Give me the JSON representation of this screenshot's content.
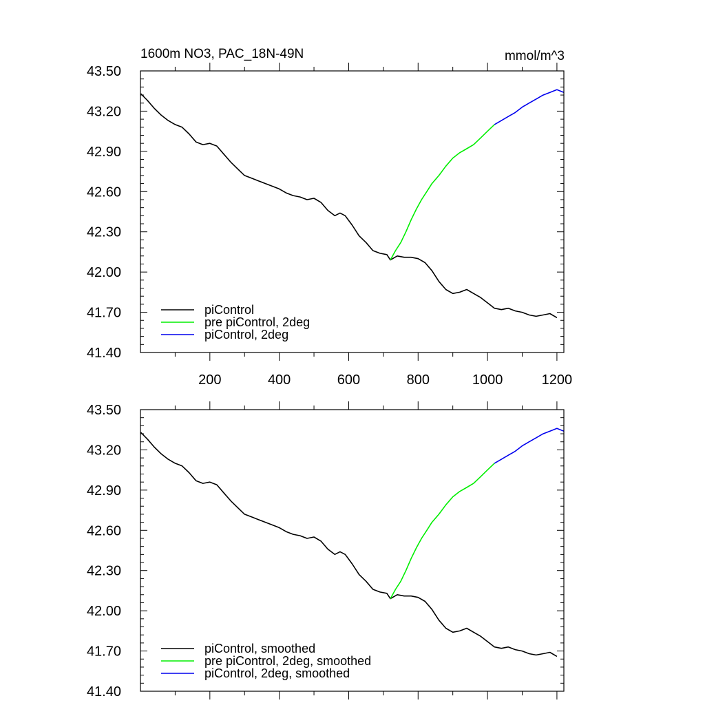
{
  "chart_data": [
    {
      "type": "line",
      "title": "1600m NO3, PAC_18N-49N",
      "units": "mmol/m^3",
      "xlim": [
        0,
        1220
      ],
      "ylim": [
        41.4,
        43.5
      ],
      "x_tick_values": [
        200,
        400,
        600,
        800,
        1000,
        1200
      ],
      "x_tick_labels": [
        "200",
        "400",
        "600",
        "800",
        "1000",
        "1200"
      ],
      "x_minor_tick_values": [
        100,
        300,
        500,
        700,
        900,
        1100
      ],
      "y_tick_values": [
        41.4,
        41.7,
        42.0,
        42.3,
        42.6,
        42.9,
        43.2,
        43.5
      ],
      "y_tick_labels": [
        "41.40",
        "41.70",
        "42.00",
        "42.30",
        "42.60",
        "42.90",
        "43.20",
        "43.50"
      ],
      "legend": {
        "position": "bottom-left",
        "entries": [
          "piControl",
          "pre piControl, 2deg",
          "piControl, 2deg"
        ]
      },
      "series": [
        {
          "name": "piControl",
          "color": "#000000",
          "x": [
            1,
            20,
            40,
            60,
            80,
            100,
            120,
            140,
            160,
            180,
            200,
            220,
            240,
            260,
            280,
            300,
            320,
            340,
            360,
            380,
            400,
            420,
            440,
            460,
            480,
            500,
            520,
            540,
            560,
            575,
            590,
            610,
            630,
            650,
            670,
            690,
            710,
            720,
            740,
            760,
            780,
            800,
            820,
            840,
            860,
            880,
            900,
            920,
            940,
            960,
            980,
            1000,
            1020,
            1040,
            1060,
            1080,
            1100,
            1120,
            1140,
            1160,
            1180,
            1200
          ],
          "y": [
            43.33,
            43.28,
            43.22,
            43.17,
            43.13,
            43.1,
            43.08,
            43.03,
            42.97,
            42.95,
            42.96,
            42.94,
            42.88,
            42.82,
            42.77,
            42.72,
            42.7,
            42.68,
            42.66,
            42.64,
            42.62,
            42.59,
            42.57,
            42.56,
            42.54,
            42.55,
            42.52,
            42.46,
            42.42,
            42.44,
            42.42,
            42.35,
            42.27,
            42.22,
            42.16,
            42.14,
            42.13,
            42.09,
            42.12,
            42.11,
            42.11,
            42.1,
            42.07,
            42.01,
            41.93,
            41.87,
            41.84,
            41.85,
            41.87,
            41.84,
            41.81,
            41.77,
            41.73,
            41.72,
            41.73,
            41.71,
            41.7,
            41.68,
            41.67,
            41.68,
            41.69,
            41.66
          ]
        },
        {
          "name": "pre piControl, 2deg",
          "color": "#00ee00",
          "x": [
            720,
            735,
            750,
            765,
            780,
            795,
            810,
            825,
            840,
            860,
            880,
            900,
            920,
            940,
            960,
            980,
            1000,
            1020
          ],
          "y": [
            42.09,
            42.16,
            42.22,
            42.3,
            42.39,
            42.47,
            42.54,
            42.6,
            42.66,
            42.72,
            42.79,
            42.85,
            42.89,
            42.92,
            42.95,
            43.0,
            43.05,
            43.1
          ]
        },
        {
          "name": "piControl, 2deg",
          "color": "#0000ee",
          "x": [
            1020,
            1040,
            1060,
            1080,
            1100,
            1120,
            1140,
            1160,
            1180,
            1200,
            1220
          ],
          "y": [
            43.1,
            43.13,
            43.16,
            43.19,
            43.23,
            43.26,
            43.29,
            43.32,
            43.34,
            43.36,
            43.34
          ]
        }
      ]
    },
    {
      "type": "line",
      "xlim": [
        0,
        1220
      ],
      "ylim": [
        41.4,
        43.5
      ],
      "x_tick_values": [
        200,
        400,
        600,
        800,
        1000,
        1200
      ],
      "x_minor_tick_values": [
        100,
        300,
        500,
        700,
        900,
        1100
      ],
      "y_tick_values": [
        41.4,
        41.7,
        42.0,
        42.3,
        42.6,
        42.9,
        43.2,
        43.5
      ],
      "y_tick_labels": [
        "41.40",
        "41.70",
        "42.00",
        "42.30",
        "42.60",
        "42.90",
        "43.20",
        "43.50"
      ],
      "legend": {
        "position": "bottom-left",
        "entries": [
          "piControl, smoothed",
          "pre piControl, 2deg, smoothed",
          "piControl, 2deg, smoothed"
        ]
      },
      "series": [
        {
          "name": "piControl, smoothed",
          "color": "#000000",
          "x": [
            1,
            20,
            40,
            60,
            80,
            100,
            120,
            140,
            160,
            180,
            200,
            220,
            240,
            260,
            280,
            300,
            320,
            340,
            360,
            380,
            400,
            420,
            440,
            460,
            480,
            500,
            520,
            540,
            560,
            575,
            590,
            610,
            630,
            650,
            670,
            690,
            710,
            720,
            740,
            760,
            780,
            800,
            820,
            840,
            860,
            880,
            900,
            920,
            940,
            960,
            980,
            1000,
            1020,
            1040,
            1060,
            1080,
            1100,
            1120,
            1140,
            1160,
            1180,
            1200
          ],
          "y": [
            43.33,
            43.28,
            43.22,
            43.17,
            43.13,
            43.1,
            43.08,
            43.03,
            42.97,
            42.95,
            42.96,
            42.94,
            42.88,
            42.82,
            42.77,
            42.72,
            42.7,
            42.68,
            42.66,
            42.64,
            42.62,
            42.59,
            42.57,
            42.56,
            42.54,
            42.55,
            42.52,
            42.46,
            42.42,
            42.44,
            42.42,
            42.35,
            42.27,
            42.22,
            42.16,
            42.14,
            42.13,
            42.09,
            42.12,
            42.11,
            42.11,
            42.1,
            42.07,
            42.01,
            41.93,
            41.87,
            41.84,
            41.85,
            41.87,
            41.84,
            41.81,
            41.77,
            41.73,
            41.72,
            41.73,
            41.71,
            41.7,
            41.68,
            41.67,
            41.68,
            41.69,
            41.66
          ]
        },
        {
          "name": "pre piControl, 2deg, smoothed",
          "color": "#00ee00",
          "x": [
            720,
            735,
            750,
            765,
            780,
            795,
            810,
            825,
            840,
            860,
            880,
            900,
            920,
            940,
            960,
            980,
            1000,
            1020
          ],
          "y": [
            42.09,
            42.16,
            42.22,
            42.3,
            42.39,
            42.47,
            42.54,
            42.6,
            42.66,
            42.72,
            42.79,
            42.85,
            42.89,
            42.92,
            42.95,
            43.0,
            43.05,
            43.1
          ]
        },
        {
          "name": "piControl, 2deg, smoothed",
          "color": "#0000ee",
          "x": [
            1020,
            1040,
            1060,
            1080,
            1100,
            1120,
            1140,
            1160,
            1180,
            1200,
            1220
          ],
          "y": [
            43.1,
            43.13,
            43.16,
            43.19,
            43.23,
            43.26,
            43.29,
            43.32,
            43.34,
            43.36,
            43.34
          ]
        }
      ]
    }
  ]
}
